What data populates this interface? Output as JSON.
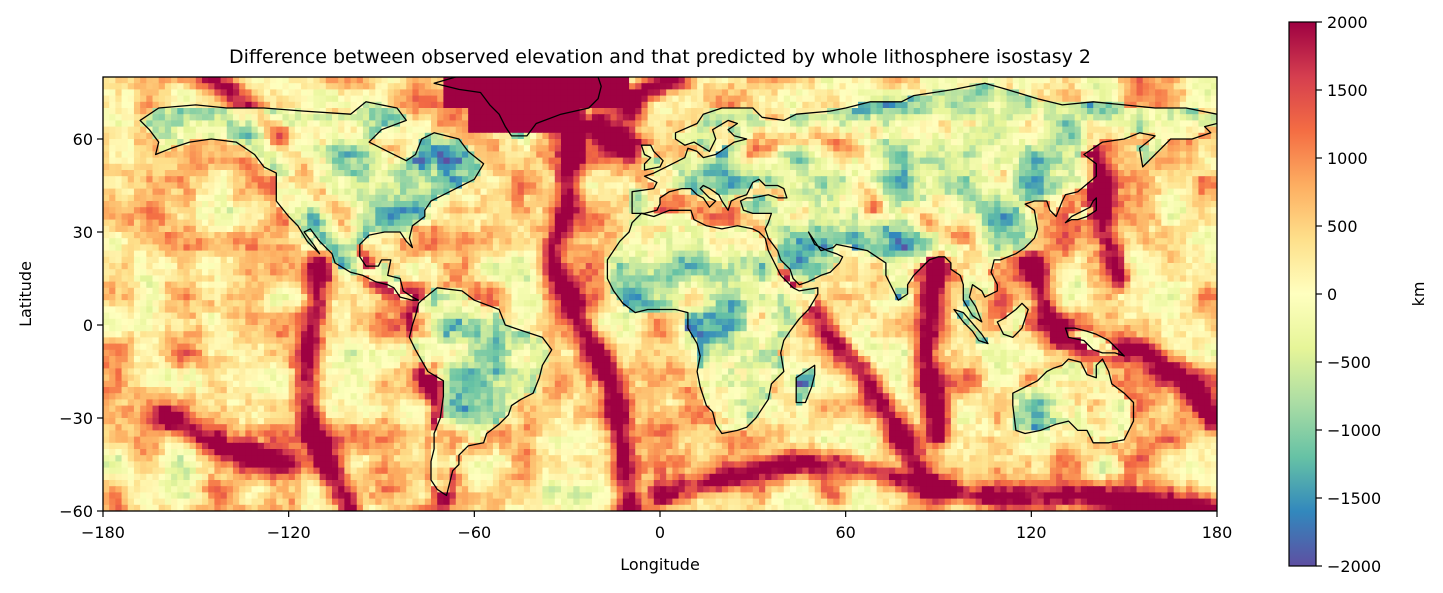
{
  "chart_data": {
    "type": "heatmap",
    "title": "Difference between observed elevation and that predicted by whole lithosphere isostasy 2",
    "xlabel": "Longitude",
    "ylabel": "Latitude",
    "xlim": [
      -180,
      180
    ],
    "ylim": [
      -60,
      80
    ],
    "xticks": [
      -180,
      -120,
      -60,
      0,
      60,
      120,
      180
    ],
    "xtick_labels": [
      "−180",
      "−120",
      "−60",
      "0",
      "60",
      "120",
      "180"
    ],
    "yticks": [
      -60,
      -30,
      0,
      30,
      60
    ],
    "ytick_labels": [
      "−60",
      "−30",
      "0",
      "30",
      "60"
    ],
    "grid": false,
    "colormap": "Spectral_r",
    "colormap_stops": [
      "#5e4fa2",
      "#3288bd",
      "#66c2a5",
      "#abdda4",
      "#e6f598",
      "#ffffbf",
      "#fee08b",
      "#fdae61",
      "#f46d43",
      "#d53e4f",
      "#9e0142"
    ],
    "colorbar": {
      "label": "km",
      "vmin": -2000,
      "vmax": 2000,
      "ticks": [
        2000,
        1500,
        1000,
        500,
        0,
        -500,
        -1000,
        -1500,
        -2000
      ],
      "tick_labels": [
        "2000",
        "1500",
        "1000",
        "500",
        "0",
        "−500",
        "−1000",
        "−1500",
        "−2000"
      ]
    },
    "overlay": "coastlines"
  }
}
